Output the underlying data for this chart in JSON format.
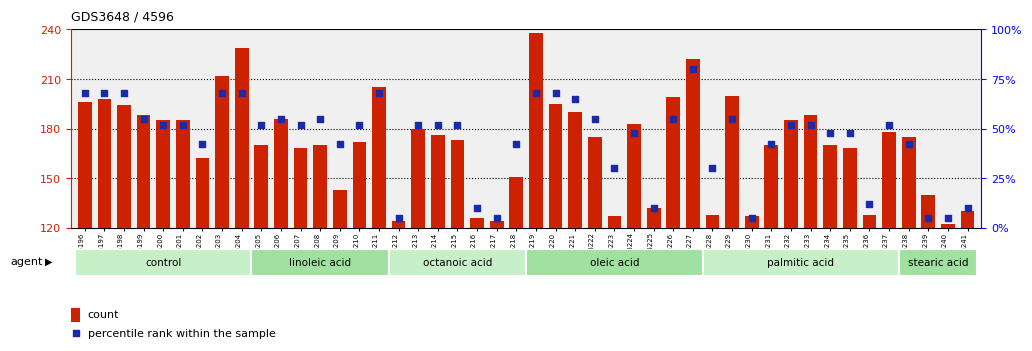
{
  "title": "GDS3648 / 4596",
  "samples": [
    "GSM525196",
    "GSM525197",
    "GSM525198",
    "GSM525199",
    "GSM525200",
    "GSM525201",
    "GSM525202",
    "GSM525203",
    "GSM525204",
    "GSM525205",
    "GSM525206",
    "GSM525207",
    "GSM525208",
    "GSM525209",
    "GSM525210",
    "GSM525211",
    "GSM525212",
    "GSM525213",
    "GSM525214",
    "GSM525215",
    "GSM525216",
    "GSM525217",
    "GSM525218",
    "GSM525219",
    "GSM525220",
    "GSM525221",
    "GSM525222",
    "GSM525223",
    "GSM525224",
    "GSM525225",
    "GSM525226",
    "GSM525227",
    "GSM525228",
    "GSM525229",
    "GSM525230",
    "GSM525231",
    "GSM525232",
    "GSM525233",
    "GSM525234",
    "GSM525235",
    "GSM525236",
    "GSM525237",
    "GSM525238",
    "GSM525239",
    "GSM525240",
    "GSM525241"
  ],
  "counts": [
    196,
    198,
    194,
    188,
    185,
    185,
    162,
    212,
    229,
    170,
    186,
    168,
    170,
    143,
    172,
    205,
    124,
    180,
    176,
    173,
    126,
    124,
    151,
    238,
    195,
    190,
    175,
    127,
    183,
    132,
    199,
    222,
    128,
    200,
    127,
    170,
    185,
    188,
    170,
    168,
    128,
    178,
    175,
    140,
    122,
    130
  ],
  "percentile_ranks": [
    68,
    68,
    68,
    55,
    52,
    52,
    42,
    68,
    68,
    52,
    55,
    52,
    55,
    42,
    52,
    68,
    5,
    52,
    52,
    52,
    10,
    5,
    42,
    68,
    68,
    65,
    55,
    30,
    48,
    10,
    55,
    80,
    30,
    55,
    5,
    42,
    52,
    52,
    48,
    48,
    12,
    52,
    42,
    5,
    5,
    10
  ],
  "groups": [
    {
      "name": "control",
      "start": 0,
      "end": 8,
      "color": "#c8f0c8"
    },
    {
      "name": "linoleic acid",
      "start": 9,
      "end": 15,
      "color": "#a0e0a0"
    },
    {
      "name": "octanoic acid",
      "start": 16,
      "end": 22,
      "color": "#c8f0c8"
    },
    {
      "name": "oleic acid",
      "start": 23,
      "end": 31,
      "color": "#a0e0a0"
    },
    {
      "name": "palmitic acid",
      "start": 32,
      "end": 41,
      "color": "#c8f0c8"
    },
    {
      "name": "stearic acid",
      "start": 42,
      "end": 45,
      "color": "#a0e0a0"
    }
  ],
  "ymin": 120,
  "ymax": 240,
  "yticks": [
    120,
    150,
    180,
    210,
    240
  ],
  "right_yticks_vals": [
    0,
    25,
    50,
    75,
    100
  ],
  "right_yticks_labels": [
    "0%",
    "25%",
    "50%",
    "75%",
    "100%"
  ],
  "bar_color": "#cc2200",
  "dot_color": "#1a2baa",
  "bar_width": 0.7,
  "bg_color": "#f0f0f0"
}
